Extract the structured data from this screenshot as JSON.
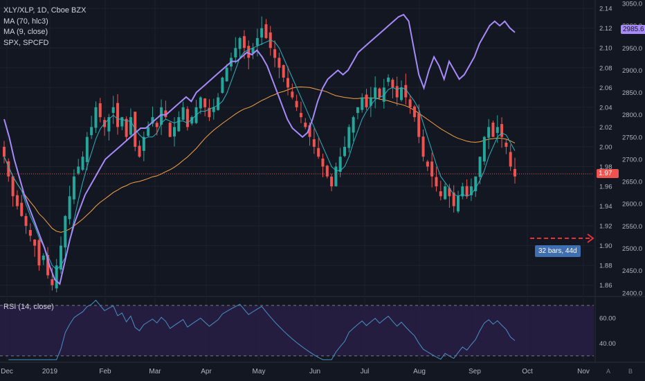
{
  "legend": {
    "symbol": "XLY/XLP, 1D, Cboe BZX",
    "ma70": "MA (70, hlc3)",
    "ma9": "MA (9, close)",
    "spx": "SPX, SPCFD"
  },
  "rsi_legend": "RSI (14, close)",
  "badges": {
    "last_price": "1.97",
    "spx_last": "2985.6",
    "measure": "32 bars, 44d"
  },
  "footer": {
    "auto": "A",
    "log": "B"
  },
  "colors": {
    "bg": "#131722",
    "grid": "#1e222d",
    "up": "#26a69a",
    "down": "#ef5350",
    "ma70": "#f7a343",
    "ma9": "#2bb3c0",
    "spx": "#a78bfa",
    "rsi": "#4a90c8",
    "rsi_band": "#2a1f47",
    "text": "#b2b5be",
    "price_line": "#ef5350",
    "measure": "#e5323b"
  },
  "chart_data": {
    "type": "candlestick",
    "title": "XLY/XLP, 1D, Cboe BZX",
    "x_ticks": [
      "Dec",
      "2019",
      "Feb",
      "Mar",
      "Apr",
      "May",
      "Jun",
      "Jul",
      "Aug",
      "Sep",
      "Oct",
      "Nov"
    ],
    "y_ticks_left_scale": [
      1.86,
      1.88,
      1.9,
      1.92,
      1.94,
      1.96,
      1.98,
      2.0,
      2.02,
      2.04,
      2.06,
      2.08,
      2.1,
      2.12,
      2.14
    ],
    "y_ticks_spx_scale": [
      2400,
      2450,
      2500,
      2550,
      2600,
      2650,
      2700,
      2750,
      2800,
      2850,
      2900,
      2950,
      3000,
      3050
    ],
    "ylim": [
      1.85,
      2.145
    ],
    "spx_ylim": [
      2395,
      3050
    ],
    "last_price": 1.97,
    "measure_label": "32 bars, 44d",
    "series": [
      {
        "name": "XLY/XLP close (approx)",
        "values": [
          1.99,
          1.97,
          1.95,
          1.94,
          1.93,
          1.92,
          1.91,
          1.9,
          1.88,
          1.89,
          1.87,
          1.86,
          1.88,
          1.9,
          1.93,
          1.95,
          1.97,
          1.98,
          1.99,
          2.01,
          2.02,
          2.04,
          2.03,
          2.02,
          2.03,
          2.04,
          2.02,
          2.03,
          2.01,
          2.03,
          2.0,
          1.99,
          2.01,
          2.02,
          2.03,
          2.02,
          2.04,
          2.03,
          2.01,
          2.02,
          2.03,
          2.04,
          2.02,
          2.03,
          2.04,
          2.05,
          2.04,
          2.03,
          2.04,
          2.05,
          2.07,
          2.08,
          2.09,
          2.1,
          2.11,
          2.1,
          2.09,
          2.1,
          2.11,
          2.12,
          2.11,
          2.1,
          2.09,
          2.08,
          2.07,
          2.06,
          2.05,
          2.04,
          2.03,
          2.02,
          2.01,
          2.0,
          1.99,
          1.98,
          1.97,
          1.96,
          1.98,
          1.99,
          2.0,
          2.02,
          2.03,
          2.04,
          2.05,
          2.04,
          2.05,
          2.06,
          2.05,
          2.06,
          2.07,
          2.06,
          2.05,
          2.06,
          2.05,
          2.04,
          2.03,
          2.01,
          1.99,
          1.98,
          1.97,
          1.96,
          1.95,
          1.96,
          1.95,
          1.94,
          1.95,
          1.96,
          1.95,
          1.96,
          1.97,
          1.99,
          2.01,
          2.02,
          2.01,
          2.02,
          2.01,
          2.0,
          1.98,
          1.97
        ]
      },
      {
        "name": "MA (9, close)",
        "values": "computed"
      },
      {
        "name": "MA (70, hlc3)",
        "values": "computed"
      },
      {
        "name": "SPX, SPCFD (approx)",
        "values": [
          2790,
          2750,
          2700,
          2660,
          2620,
          2590,
          2560,
          2530,
          2500,
          2460,
          2430,
          2420,
          2470,
          2520,
          2560,
          2590,
          2620,
          2640,
          2660,
          2680,
          2700,
          2710,
          2720,
          2730,
          2740,
          2750,
          2760,
          2770,
          2770,
          2780,
          2790,
          2800,
          2800,
          2810,
          2820,
          2830,
          2840,
          2830,
          2850,
          2860,
          2870,
          2880,
          2890,
          2900,
          2910,
          2920,
          2920,
          2930,
          2940,
          2935,
          2945,
          2930,
          2910,
          2880,
          2850,
          2820,
          2790,
          2770,
          2760,
          2750,
          2760,
          2790,
          2830,
          2860,
          2880,
          2890,
          2900,
          2890,
          2900,
          2920,
          2940,
          2950,
          2960,
          2970,
          2980,
          2990,
          3000,
          3010,
          3020,
          3025,
          3010,
          2950,
          2890,
          2860,
          2900,
          2930,
          2910,
          2880,
          2920,
          2900,
          2880,
          2890,
          2910,
          2930,
          2960,
          2980,
          3000,
          3010,
          3000,
          3010,
          2995,
          2985
        ]
      }
    ],
    "rsi": {
      "name": "RSI (14, close)",
      "ylim": [
        26,
        76
      ],
      "levels": [
        70,
        30
      ],
      "ticks": [
        40,
        60
      ]
    }
  }
}
